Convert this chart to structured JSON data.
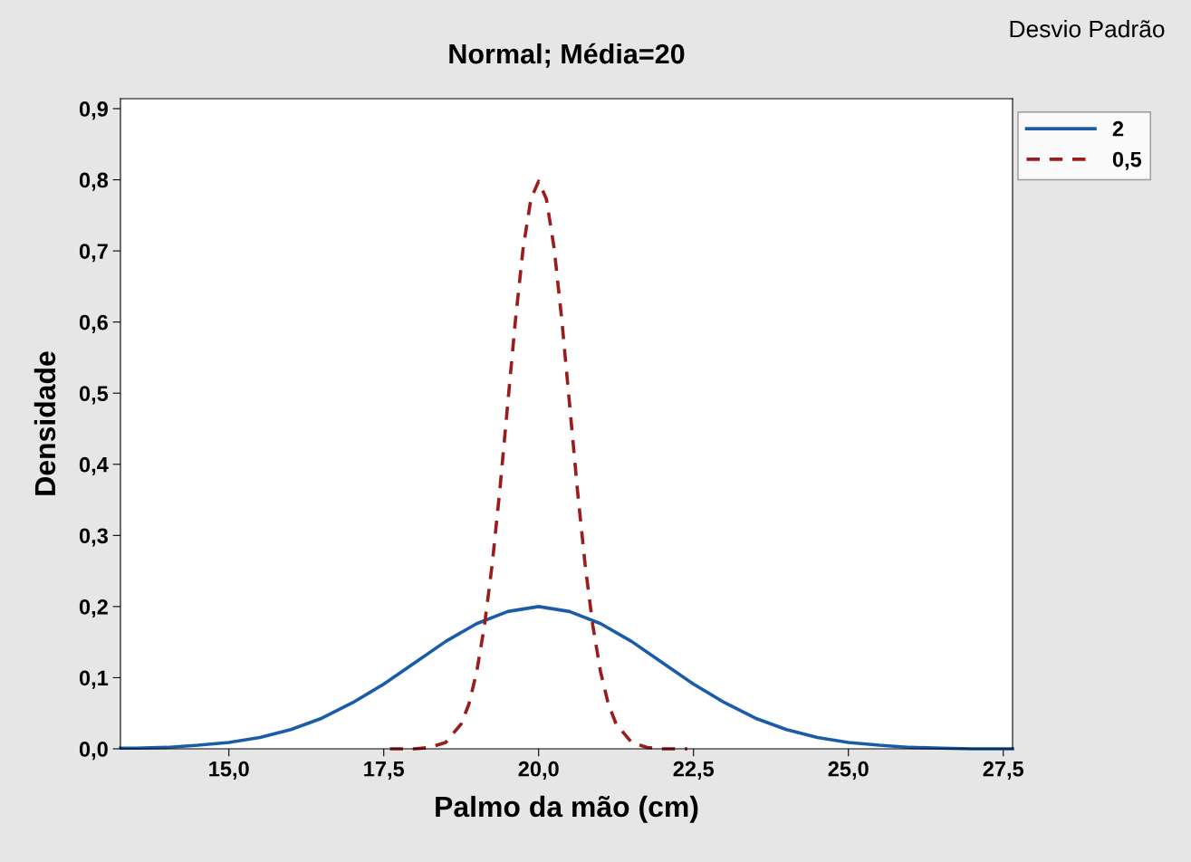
{
  "chart_data": {
    "type": "line",
    "title": "Normal; Média=20",
    "xlabel": "Palmo da mão (cm)",
    "ylabel": "Densidade",
    "legend_title": "Desvio Padrão",
    "legend": "top right",
    "grid": false,
    "marker": "none",
    "xlim": [
      13.25,
      27.65
    ],
    "ylim": [
      0,
      0.914
    ],
    "xticks": [
      {
        "value": 15,
        "label": "15,0"
      },
      {
        "value": 17.5,
        "label": "17,5"
      },
      {
        "value": 20,
        "label": "20,0"
      },
      {
        "value": 22.5,
        "label": "22,5"
      },
      {
        "value": 25,
        "label": "25,0"
      },
      {
        "value": 27.5,
        "label": "27,5"
      }
    ],
    "yticks": [
      {
        "value": 0,
        "label": "0,0"
      },
      {
        "value": 0.1,
        "label": "0,1"
      },
      {
        "value": 0.2,
        "label": "0,2"
      },
      {
        "value": 0.3,
        "label": "0,3"
      },
      {
        "value": 0.4,
        "label": "0,4"
      },
      {
        "value": 0.5,
        "label": "0,5"
      },
      {
        "value": 0.6,
        "label": "0,6"
      },
      {
        "value": 0.7,
        "label": "0,7"
      },
      {
        "value": 0.8,
        "label": "0,8"
      },
      {
        "value": 0.9,
        "label": "0,9"
      }
    ],
    "series": [
      {
        "name": "2",
        "color": "#1a5ca8",
        "line_style": "solid",
        "x": [
          13.25,
          13.5,
          14,
          14.5,
          15,
          15.5,
          16,
          16.5,
          17,
          17.5,
          18,
          18.5,
          19,
          19.5,
          20,
          20.5,
          21,
          21.5,
          22,
          22.5,
          23,
          23.5,
          24,
          24.5,
          25,
          25.5,
          26,
          26.5,
          27,
          27.5,
          27.65
        ],
        "values": [
          0.001,
          0.001,
          0.002,
          0.005,
          0.009,
          0.016,
          0.027,
          0.043,
          0.065,
          0.091,
          0.121,
          0.151,
          0.176,
          0.193,
          0.2,
          0.193,
          0.176,
          0.151,
          0.121,
          0.091,
          0.065,
          0.043,
          0.027,
          0.016,
          0.009,
          0.005,
          0.002,
          0.001,
          0.0,
          0.0,
          0.0
        ]
      },
      {
        "name": "0,5",
        "color": "#9b1c1c",
        "line_style": "dashed",
        "x": [
          17.6,
          17.75,
          18,
          18.25,
          18.5,
          18.75,
          18.875,
          19,
          19.125,
          19.25,
          19.375,
          19.5,
          19.625,
          19.75,
          19.875,
          20,
          20.125,
          20.25,
          20.375,
          20.5,
          20.625,
          20.75,
          20.875,
          21,
          21.125,
          21.25,
          21.5,
          21.75,
          22,
          22.25,
          22.4
        ],
        "values": [
          0.0,
          0.0,
          0.0,
          0.002,
          0.009,
          0.035,
          0.063,
          0.108,
          0.173,
          0.259,
          0.365,
          0.484,
          0.602,
          0.704,
          0.773,
          0.798,
          0.773,
          0.704,
          0.602,
          0.484,
          0.365,
          0.259,
          0.173,
          0.108,
          0.063,
          0.035,
          0.009,
          0.002,
          0.0,
          0.0,
          0.0
        ]
      }
    ]
  }
}
